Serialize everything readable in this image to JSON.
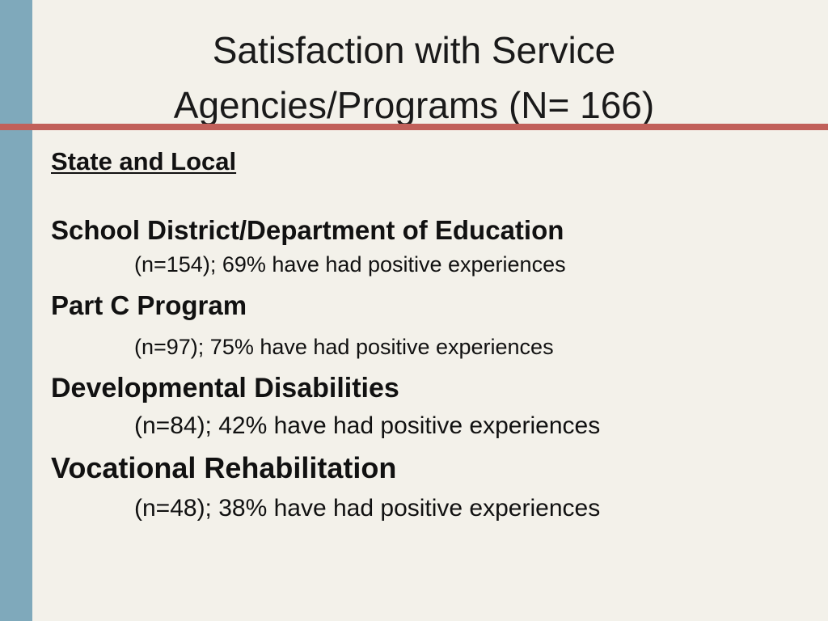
{
  "slide": {
    "title_line1": "Satisfaction with Service",
    "title_line2": "Agencies/Programs (N= 166)",
    "section_heading": "State and Local",
    "colors": {
      "background": "#f3f1ea",
      "left_bar": "#7fa9bb",
      "rule": "#c1605a",
      "text": "#111111"
    },
    "items": [
      {
        "name": "School District/Department of Education",
        "detail": "(n=154); 69% have had positive experiences"
      },
      {
        "name": "Part C Program",
        "detail": "(n=97); 75% have had positive experiences"
      },
      {
        "name": "Developmental Disabilities",
        "detail": "(n=84); 42% have had positive experiences"
      },
      {
        "name": "Vocational Rehabilitation",
        "detail": "(n=48); 38% have had positive experiences"
      }
    ]
  }
}
